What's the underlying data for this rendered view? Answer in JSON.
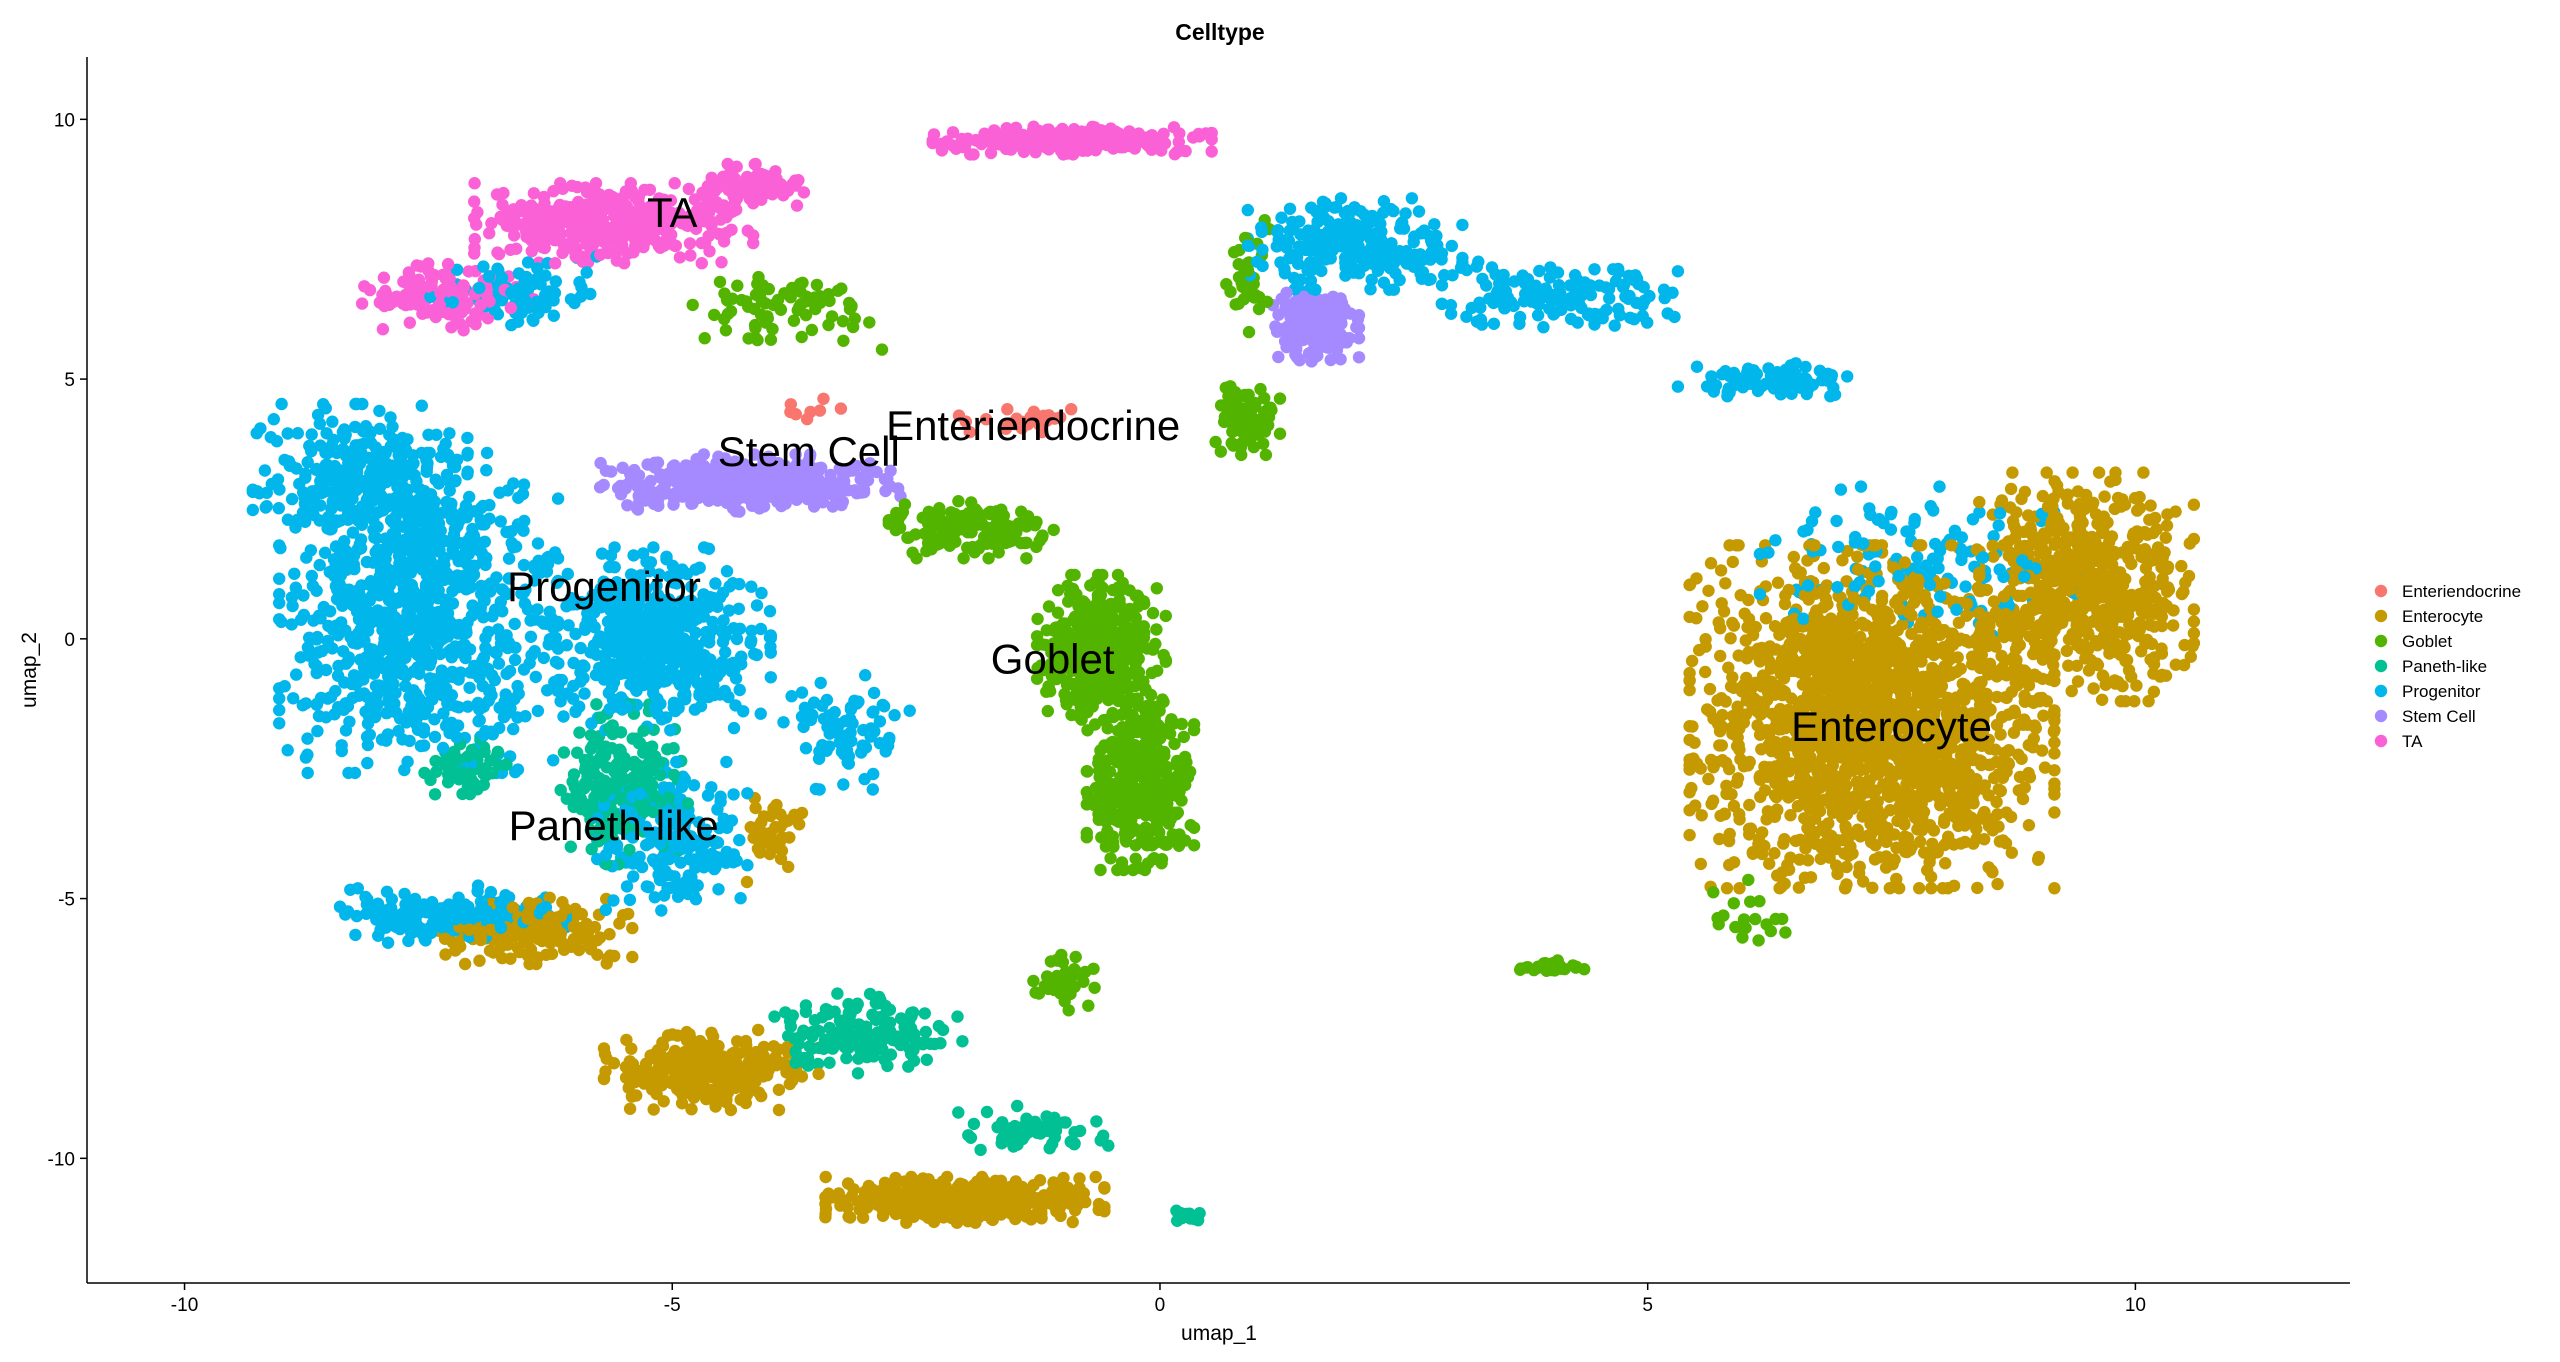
{
  "chart_data": {
    "type": "scatter",
    "title": "Celltype",
    "xlabel": "umap_1",
    "ylabel": "umap_2",
    "xlim": [
      -11,
      12.2
    ],
    "ylim": [
      -12.4,
      11.2
    ],
    "xticks": [
      -10,
      -5,
      0,
      5,
      10
    ],
    "yticks": [
      -10,
      -5,
      0,
      5,
      10
    ],
    "grid": false,
    "legend_position": "right",
    "series": [
      {
        "name": "Enteriendocrine",
        "color": "#F8766D"
      },
      {
        "name": "Enterocyte",
        "color": "#C49A00"
      },
      {
        "name": "Goblet",
        "color": "#53B400"
      },
      {
        "name": "Paneth-like",
        "color": "#00C094"
      },
      {
        "name": "Progenitor",
        "color": "#00B6EB"
      },
      {
        "name": "Stem Cell",
        "color": "#A58AFF"
      },
      {
        "name": "TA",
        "color": "#FB61D7"
      }
    ],
    "cluster_labels": [
      {
        "text": "TA",
        "x": -5.0,
        "y": 8.2
      },
      {
        "text": "Enteriendocrine",
        "x": -1.3,
        "y": 4.1
      },
      {
        "text": "Stem Cell",
        "x": -3.6,
        "y": 3.6
      },
      {
        "text": "Progenitor",
        "x": -5.7,
        "y": 1.0
      },
      {
        "text": "Goblet",
        "x": -1.1,
        "y": -0.4
      },
      {
        "text": "Enterocyte",
        "x": 7.5,
        "y": -1.7
      },
      {
        "text": "Paneth-like",
        "x": -5.6,
        "y": -3.6
      }
    ]
  }
}
